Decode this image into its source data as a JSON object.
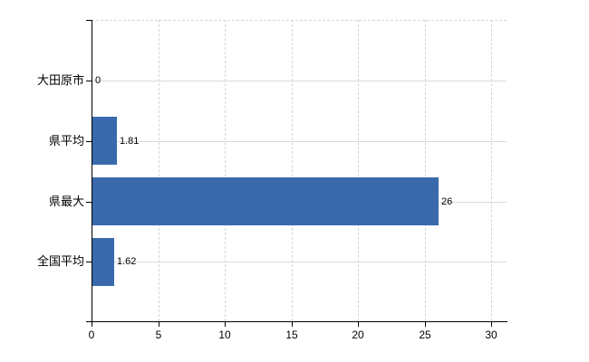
{
  "chart": {
    "background_color": "#ffffff",
    "axis_color": "#000000",
    "grid_color": "#d9d9d9",
    "text_color": "#000000",
    "bar_color": "#3a6aac",
    "bar_texture_colors": [
      "#4577bb",
      "#2e5c9e"
    ]
  },
  "chart_data": {
    "type": "bar",
    "orientation": "horizontal",
    "title": "",
    "categories": [
      "大田原市",
      "県平均",
      "県最大",
      "全国平均"
    ],
    "values": [
      0,
      1.81,
      26,
      1.62
    ],
    "value_labels": [
      "0",
      "1.81",
      "26",
      "1.62"
    ],
    "x_tick_values": [
      0,
      5,
      10,
      15,
      20,
      25,
      30
    ],
    "x_tick_labels": [
      "0",
      "5",
      "10",
      "15",
      "20",
      "25",
      "30"
    ],
    "xlim": [
      0,
      31.2
    ],
    "ylabel": "",
    "xlabel": "",
    "grid": "on",
    "legend_position": "none"
  }
}
